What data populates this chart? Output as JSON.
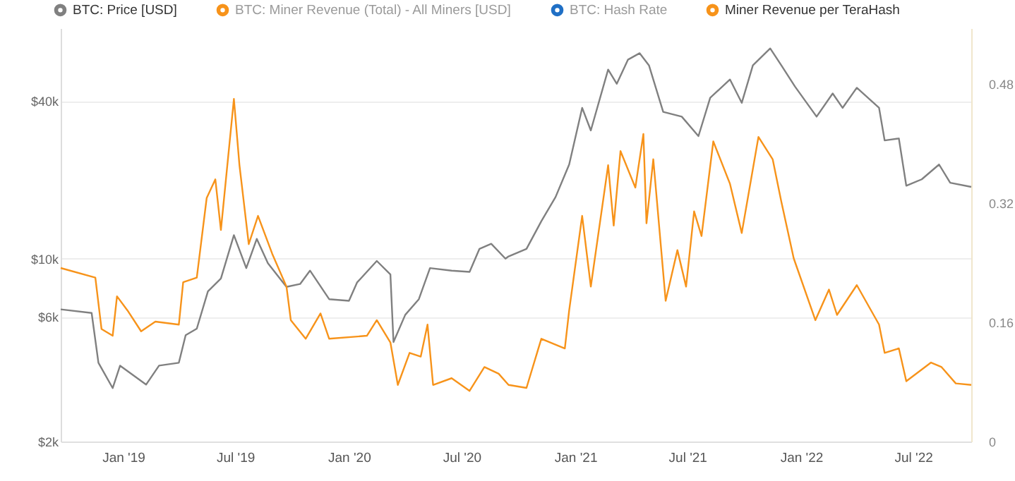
{
  "chart_data": {
    "type": "line",
    "legend": "top left",
    "grid": "y",
    "marker": "none",
    "line_style": "solid",
    "log": "y",
    "xlim": [
      "2018-09-22",
      "2022-10-03"
    ],
    "xticks": [
      {
        "value": "2019-01-01",
        "label": "Jan '19"
      },
      {
        "value": "2019-07-01",
        "label": "Jul '19"
      },
      {
        "value": "2020-01-01",
        "label": "Jan '20"
      },
      {
        "value": "2020-07-01",
        "label": "Jul '20"
      },
      {
        "value": "2021-01-01",
        "label": "Jan '21"
      },
      {
        "value": "2021-07-01",
        "label": "Jul '21"
      },
      {
        "value": "2022-01-01",
        "label": "Jan '22"
      },
      {
        "value": "2022-07-01",
        "label": "Jul '22"
      }
    ],
    "ylim": [
      2000,
      76000
    ],
    "yticks": [
      {
        "value": 2000,
        "label": "$2k"
      },
      {
        "value": 6000,
        "label": "$6k"
      },
      {
        "value": 10000,
        "label": "$10k"
      },
      {
        "value": 40000,
        "label": "$40k"
      }
    ],
    "y2lim": [
      0,
      0.555
    ],
    "y2ticks": [
      0,
      0.16,
      0.32,
      0.48
    ],
    "series": [
      {
        "name": "BTC: Price [USD]",
        "color": "#808080",
        "x": [
          "2018-09-22",
          "2018-11-11",
          "2018-11-22",
          "2018-12-15",
          "2018-12-27",
          "2019-02-07",
          "2019-02-28",
          "2019-04-01",
          "2019-04-12",
          "2019-04-30",
          "2019-05-18",
          "2019-06-08",
          "2019-06-29",
          "2019-07-19",
          "2019-08-05",
          "2019-08-23",
          "2019-09-22",
          "2019-10-14",
          "2019-10-30",
          "2019-11-30",
          "2020-01-01",
          "2020-01-14",
          "2020-02-15",
          "2020-03-08",
          "2020-03-13",
          "2020-04-01",
          "2020-04-23",
          "2020-05-11",
          "2020-06-15",
          "2020-07-14",
          "2020-07-30",
          "2020-08-18",
          "2020-09-10",
          "2020-09-15",
          "2020-10-14",
          "2020-11-07",
          "2020-11-30",
          "2020-12-22",
          "2021-01-12",
          "2021-01-26",
          "2021-02-23",
          "2021-03-09",
          "2021-03-27",
          "2021-04-15",
          "2021-04-30",
          "2021-05-23",
          "2021-06-22",
          "2021-07-19",
          "2021-08-07",
          "2021-09-08",
          "2021-09-27",
          "2021-10-15",
          "2021-11-12",
          "2021-11-30",
          "2021-12-22",
          "2022-01-26",
          "2022-02-21",
          "2022-03-09",
          "2022-04-01",
          "2022-05-07",
          "2022-05-16",
          "2022-06-08",
          "2022-06-20",
          "2022-07-15",
          "2022-08-12",
          "2022-08-30",
          "2022-10-03"
        ],
        "values": [
          6400,
          6200,
          4000,
          3200,
          3900,
          3300,
          3900,
          4000,
          5100,
          5400,
          7500,
          8400,
          12300,
          9200,
          11900,
          9600,
          7800,
          8000,
          9000,
          7000,
          6900,
          8100,
          9800,
          8700,
          4800,
          6100,
          7000,
          9200,
          9000,
          8900,
          10900,
          11400,
          10000,
          10200,
          10900,
          13900,
          17200,
          22900,
          37700,
          30900,
          52800,
          46600,
          57600,
          61000,
          54800,
          36400,
          34900,
          29400,
          41200,
          48400,
          39400,
          54800,
          63600,
          54800,
          45500,
          34900,
          42800,
          37700,
          45000,
          37700,
          28300,
          28800,
          19000,
          20100,
          22900,
          19500,
          18800
        ]
      },
      {
        "name": "BTC: Miner Revenue (Total) - All Miners [USD]",
        "color": "#f7931a",
        "axis": "y2"
      },
      {
        "name": "BTC: Hash Rate",
        "color": "#1f6fc5"
      },
      {
        "name": "Miner Revenue per TeraHash",
        "color": "#f7931a",
        "axis": "y2",
        "x": [
          "2018-09-22",
          "2018-11-17",
          "2018-11-27",
          "2018-12-15",
          "2018-12-22",
          "2019-01-08",
          "2019-01-30",
          "2019-02-22",
          "2019-04-01",
          "2019-04-08",
          "2019-04-30",
          "2019-05-16",
          "2019-05-30",
          "2019-06-08",
          "2019-06-29",
          "2019-07-08",
          "2019-07-23",
          "2019-08-07",
          "2019-08-30",
          "2019-09-22",
          "2019-09-29",
          "2019-10-23",
          "2019-11-16",
          "2019-11-30",
          "2020-01-30",
          "2020-02-15",
          "2020-03-08",
          "2020-03-20",
          "2020-04-08",
          "2020-04-26",
          "2020-05-07",
          "2020-05-16",
          "2020-06-15",
          "2020-07-14",
          "2020-08-07",
          "2020-08-30",
          "2020-09-15",
          "2020-10-14",
          "2020-11-07",
          "2020-12-15",
          "2020-12-22",
          "2021-01-12",
          "2021-01-26",
          "2021-02-23",
          "2021-03-04",
          "2021-03-15",
          "2021-04-08",
          "2021-04-21",
          "2021-04-26",
          "2021-05-07",
          "2021-05-27",
          "2021-06-15",
          "2021-06-29",
          "2021-07-12",
          "2021-07-24",
          "2021-08-12",
          "2021-09-08",
          "2021-09-27",
          "2021-10-24",
          "2021-11-16",
          "2021-11-30",
          "2021-12-20",
          "2022-01-24",
          "2022-02-15",
          "2022-02-28",
          "2022-04-01",
          "2022-05-07",
          "2022-05-16",
          "2022-06-08",
          "2022-06-20",
          "2022-07-30",
          "2022-08-16",
          "2022-09-08",
          "2022-10-03"
        ],
        "values": [
          0.233,
          0.22,
          0.151,
          0.142,
          0.195,
          0.176,
          0.148,
          0.161,
          0.157,
          0.214,
          0.22,
          0.327,
          0.352,
          0.284,
          0.46,
          0.371,
          0.265,
          0.303,
          0.252,
          0.208,
          0.163,
          0.138,
          0.172,
          0.138,
          0.142,
          0.163,
          0.133,
          0.076,
          0.119,
          0.114,
          0.157,
          0.076,
          0.085,
          0.068,
          0.1,
          0.091,
          0.076,
          0.072,
          0.138,
          0.125,
          0.176,
          0.303,
          0.208,
          0.371,
          0.29,
          0.39,
          0.341,
          0.413,
          0.293,
          0.379,
          0.189,
          0.257,
          0.208,
          0.309,
          0.276,
          0.403,
          0.346,
          0.28,
          0.409,
          0.379,
          0.322,
          0.246,
          0.163,
          0.204,
          0.17,
          0.21,
          0.157,
          0.119,
          0.125,
          0.081,
          0.106,
          0.1,
          0.078,
          0.076
        ]
      }
    ]
  }
}
